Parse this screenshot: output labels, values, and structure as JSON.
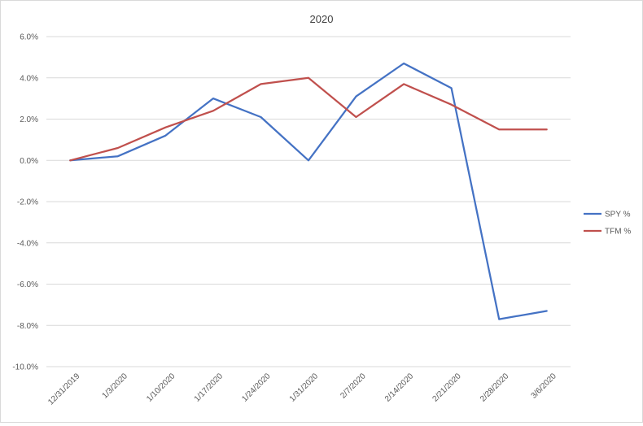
{
  "chart_data": {
    "type": "line",
    "title": "2020",
    "xlabel": "",
    "ylabel": "",
    "categories": [
      "12/31/2019",
      "1/3/2020",
      "1/10/2020",
      "1/17/2020",
      "1/24/2020",
      "1/31/2020",
      "2/7/2020",
      "2/14/2020",
      "2/21/2020",
      "2/28/2020",
      "3/6/2020"
    ],
    "y_ticks": [
      "6.0%",
      "4.0%",
      "2.0%",
      "0.0%",
      "-2.0%",
      "-4.0%",
      "-6.0%",
      "-8.0%",
      "-10.0%"
    ],
    "ylim": [
      -10,
      6
    ],
    "y_tick_values": [
      6,
      4,
      2,
      0,
      -2,
      -4,
      -6,
      -8,
      -10
    ],
    "grid": true,
    "legend_position": "right",
    "series": [
      {
        "name": "SPY %",
        "color": "#4472c4",
        "values": [
          0.0,
          0.2,
          1.2,
          3.0,
          2.1,
          0.0,
          3.1,
          4.7,
          3.5,
          -7.7,
          -7.3
        ]
      },
      {
        "name": "TFM %",
        "color": "#c0504d",
        "values": [
          0.0,
          0.6,
          1.6,
          2.4,
          3.7,
          4.0,
          2.1,
          3.7,
          2.7,
          1.5,
          1.5
        ]
      }
    ]
  }
}
